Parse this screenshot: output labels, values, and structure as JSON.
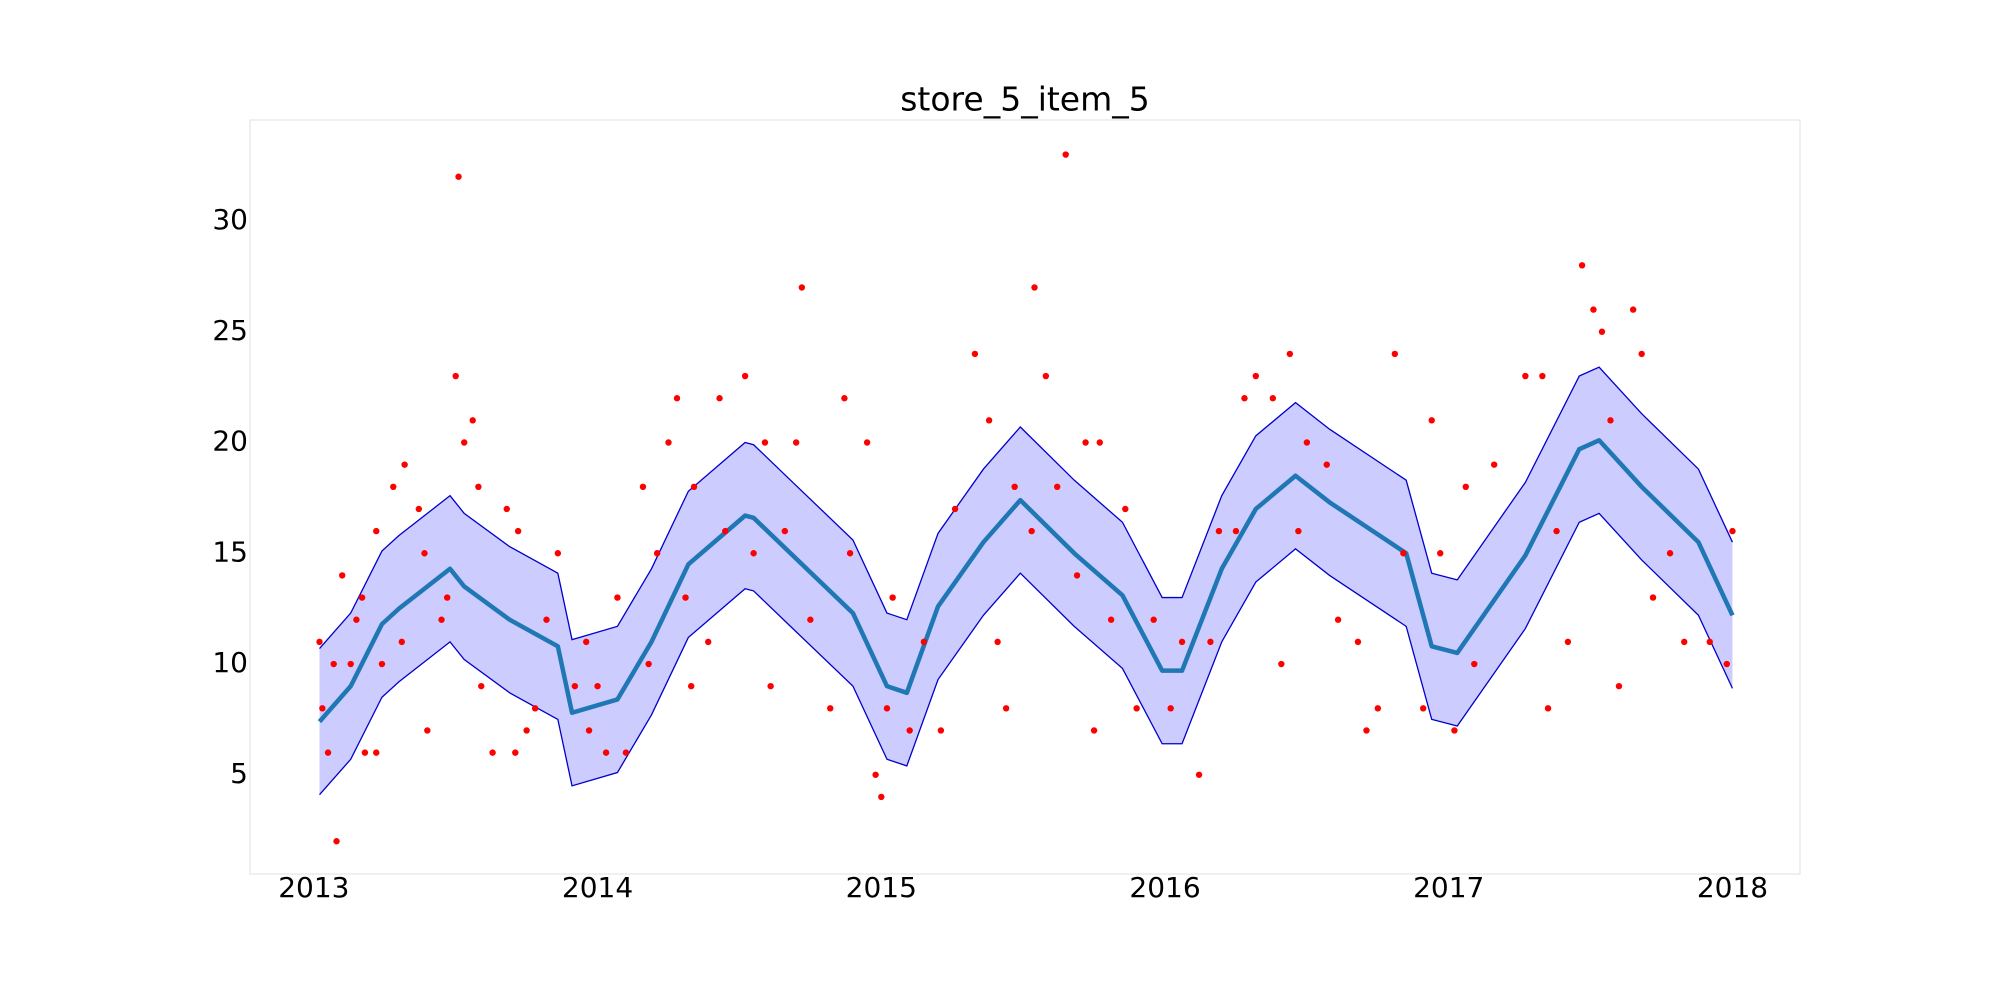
{
  "chart_data": {
    "type": "forecast",
    "title": "store_5_item_5",
    "xlim": [
      2012.775,
      2018.238
    ],
    "xticks": [
      2013,
      2014,
      2015,
      2016,
      2017,
      2018
    ],
    "ylim": [
      0.52,
      34.56
    ],
    "yticks": [
      5,
      10,
      15,
      20,
      25,
      30
    ],
    "grid": false,
    "series": [
      {
        "type": "area",
        "color": "#ccccff",
        "edge_color": "#0000cc",
        "x": [
          2013.02,
          2013.13,
          2013.24,
          2013.3,
          2013.48,
          2013.53,
          2013.69,
          2013.86,
          2013.91,
          2014.07,
          2014.19,
          2014.32,
          2014.52,
          2014.55,
          2014.68,
          2014.9,
          2015.02,
          2015.09,
          2015.2,
          2015.36,
          2015.49,
          2015.68,
          2015.85,
          2015.99,
          2016.06,
          2016.2,
          2016.32,
          2016.46,
          2016.58,
          2016.85,
          2016.94,
          2017.03,
          2017.27,
          2017.46,
          2017.53,
          2017.68,
          2017.88,
          2018.0
        ],
        "upper": [
          10.7,
          12.3,
          15.1,
          15.8,
          17.6,
          16.8,
          15.3,
          14.1,
          11.1,
          11.7,
          14.3,
          17.8,
          20.0,
          19.9,
          18.3,
          15.6,
          12.3,
          12.0,
          15.9,
          18.8,
          20.7,
          18.3,
          16.4,
          13.0,
          13.0,
          17.6,
          20.3,
          21.8,
          20.6,
          18.3,
          14.1,
          13.8,
          18.2,
          23.0,
          23.4,
          21.3,
          18.8,
          15.5
        ],
        "lower": [
          4.1,
          5.7,
          8.5,
          9.2,
          11.0,
          10.2,
          8.7,
          7.5,
          4.5,
          5.1,
          7.7,
          11.2,
          13.4,
          13.3,
          11.7,
          9.0,
          5.7,
          5.4,
          9.3,
          12.2,
          14.1,
          11.7,
          9.8,
          6.4,
          6.4,
          11.0,
          13.7,
          15.2,
          14.0,
          11.7,
          7.5,
          7.2,
          11.6,
          16.4,
          16.8,
          14.7,
          12.2,
          8.9
        ]
      },
      {
        "type": "line",
        "color": "#1f77b4",
        "x": [
          2013.02,
          2013.13,
          2013.24,
          2013.3,
          2013.48,
          2013.53,
          2013.69,
          2013.86,
          2013.91,
          2014.07,
          2014.19,
          2014.32,
          2014.52,
          2014.55,
          2014.68,
          2014.9,
          2015.02,
          2015.09,
          2015.2,
          2015.36,
          2015.49,
          2015.68,
          2015.85,
          2015.99,
          2016.06,
          2016.2,
          2016.32,
          2016.46,
          2016.58,
          2016.85,
          2016.94,
          2017.03,
          2017.27,
          2017.46,
          2017.53,
          2017.68,
          2017.88,
          2018.0
        ],
        "values": [
          7.4,
          9.0,
          11.8,
          12.5,
          14.3,
          13.5,
          12.0,
          10.8,
          7.8,
          8.4,
          11.0,
          14.5,
          16.7,
          16.6,
          15.0,
          12.3,
          9.0,
          8.7,
          12.6,
          15.5,
          17.4,
          15.0,
          13.1,
          9.7,
          9.7,
          14.3,
          17.0,
          18.5,
          17.3,
          15.0,
          10.8,
          10.5,
          14.9,
          19.7,
          20.1,
          18.0,
          15.5,
          12.2
        ]
      },
      {
        "type": "scatter",
        "color": "#ff0000",
        "x": [
          2013.02,
          2013.03,
          2013.05,
          2013.08,
          2013.07,
          2013.1,
          2013.13,
          2013.15,
          2013.17,
          2013.18,
          2013.22,
          2013.24,
          2013.22,
          2013.28,
          2013.31,
          2013.32,
          2013.37,
          2013.4,
          2013.39,
          2013.45,
          2013.47,
          2013.5,
          2013.51,
          2013.53,
          2013.56,
          2013.58,
          2013.59,
          2013.63,
          2013.68,
          2013.71,
          2013.72,
          2013.75,
          2013.78,
          2013.82,
          2013.86,
          2013.92,
          2013.96,
          2013.97,
          2014.0,
          2014.03,
          2014.07,
          2014.1,
          2014.16,
          2014.18,
          2014.21,
          2014.25,
          2014.28,
          2014.31,
          2014.33,
          2014.34,
          2014.39,
          2014.43,
          2014.45,
          2014.52,
          2014.55,
          2014.59,
          2014.61,
          2014.66,
          2014.7,
          2014.72,
          2014.75,
          2014.82,
          2014.87,
          2014.89,
          2014.95,
          2014.98,
          2015.0,
          2015.02,
          2015.04,
          2015.1,
          2015.15,
          2015.21,
          2015.26,
          2015.33,
          2015.38,
          2015.41,
          2015.44,
          2015.47,
          2015.53,
          2015.54,
          2015.58,
          2015.62,
          2015.65,
          2015.69,
          2015.72,
          2015.75,
          2015.77,
          2015.81,
          2015.86,
          2015.9,
          2015.96,
          2016.02,
          2016.06,
          2016.12,
          2016.16,
          2016.19,
          2016.25,
          2016.28,
          2016.32,
          2016.38,
          2016.41,
          2016.44,
          2016.47,
          2016.5,
          2016.57,
          2016.61,
          2016.68,
          2016.71,
          2016.75,
          2016.81,
          2016.84,
          2016.91,
          2016.94,
          2016.97,
          2017.02,
          2017.06,
          2017.09,
          2017.16,
          2017.27,
          2017.33,
          2017.35,
          2017.38,
          2017.42,
          2017.47,
          2017.51,
          2017.54,
          2017.57,
          2017.6,
          2017.65,
          2017.68,
          2017.72,
          2017.78,
          2017.83,
          2017.92,
          2017.98,
          2018.0
        ],
        "values": [
          11,
          8,
          6,
          2,
          10,
          14,
          10,
          12,
          13,
          6,
          6,
          10,
          16,
          18,
          11,
          19,
          17,
          7,
          15,
          12,
          13,
          23,
          32,
          20,
          21,
          18,
          9,
          6,
          17,
          6,
          16,
          7,
          8,
          12,
          15,
          9,
          11,
          7,
          9,
          6,
          13,
          6,
          18,
          10,
          15,
          20,
          22,
          13,
          9,
          18,
          11,
          22,
          16,
          23,
          15,
          20,
          9,
          16,
          20,
          27,
          12,
          8,
          22,
          15,
          20,
          5,
          4,
          8,
          13,
          7,
          11,
          7,
          17,
          24,
          21,
          11,
          8,
          18,
          16,
          27,
          23,
          18,
          33,
          14,
          20,
          7,
          20,
          12,
          17,
          8,
          12,
          8,
          11,
          5,
          11,
          16,
          16,
          22,
          23,
          22,
          10,
          24,
          16,
          20,
          19,
          12,
          11,
          7,
          8,
          24,
          15,
          8,
          21,
          15,
          7,
          18,
          10,
          19,
          23,
          23,
          8,
          16,
          11,
          28,
          26,
          25,
          21,
          9,
          26,
          24,
          13,
          15,
          11,
          11,
          10,
          16
        ]
      }
    ]
  }
}
